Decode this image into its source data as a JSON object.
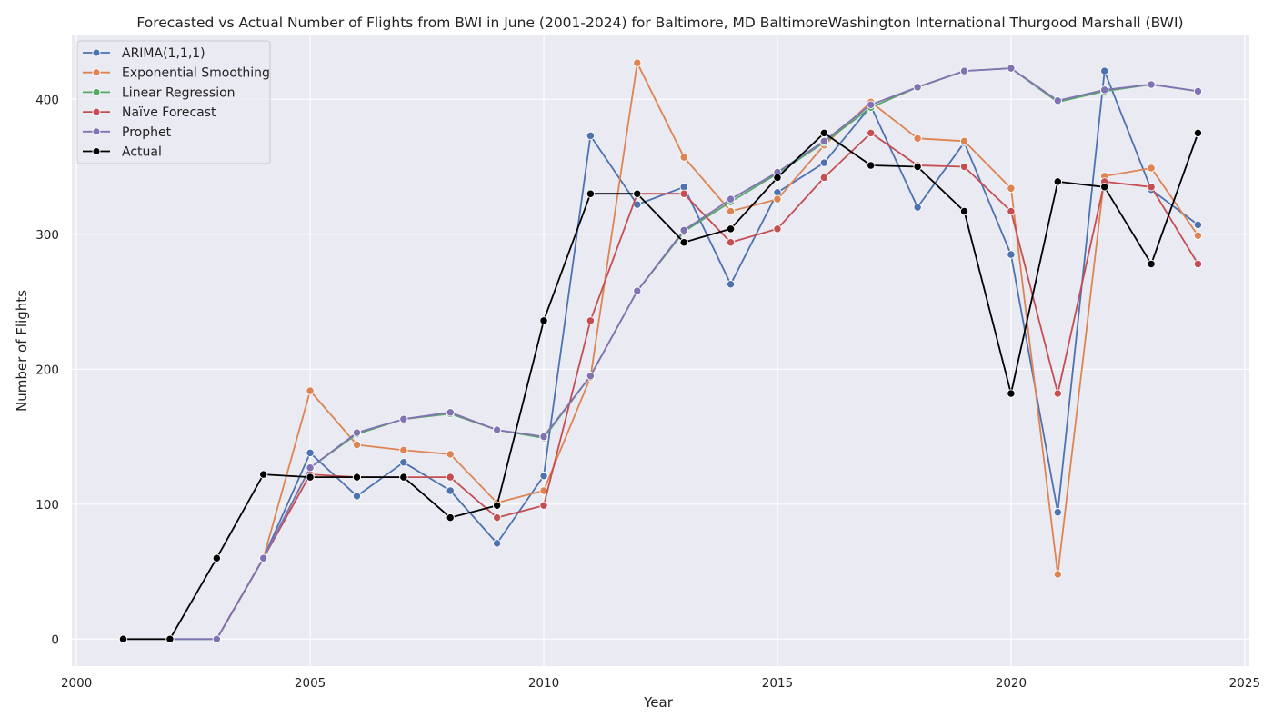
{
  "chart_data": {
    "type": "line",
    "title": "Forecasted vs Actual Number of Flights from BWI in June (2001-2024) for Baltimore, MD BaltimoreWashington International Thurgood Marshall (BWI)",
    "xlabel": "Year",
    "ylabel": "Number of Flights",
    "xlim": [
      1999.9,
      2025.1
    ],
    "ylim": [
      -20,
      448
    ],
    "x_ticks": [
      2000,
      2005,
      2010,
      2015,
      2020,
      2025
    ],
    "y_ticks": [
      0,
      100,
      200,
      300,
      400
    ],
    "grid": true,
    "legend_position": "top-left",
    "background": "#eaeaf2",
    "series": [
      {
        "name": "ARIMA(1,1,1)",
        "color": "#4c72b0",
        "x": [
          2003,
          2004,
          2005,
          2006,
          2007,
          2008,
          2009,
          2010,
          2011,
          2012,
          2013,
          2014,
          2015,
          2016,
          2017,
          2018,
          2019,
          2020,
          2021,
          2022,
          2023,
          2024
        ],
        "values": [
          0,
          60,
          138,
          106,
          131,
          110,
          71,
          121,
          373,
          322,
          335,
          263,
          331,
          353,
          395,
          320,
          368,
          285,
          94,
          421,
          333,
          307
        ]
      },
      {
        "name": "Exponential Smoothing",
        "color": "#dd8452",
        "x": [
          2003,
          2004,
          2005,
          2006,
          2007,
          2008,
          2009,
          2010,
          2011,
          2012,
          2013,
          2014,
          2015,
          2016,
          2017,
          2018,
          2019,
          2020,
          2021,
          2022,
          2023,
          2024
        ],
        "values": [
          0,
          60,
          184,
          144,
          140,
          137,
          101,
          110,
          194,
          427,
          357,
          317,
          326,
          366,
          398,
          371,
          369,
          334,
          48,
          343,
          349,
          299
        ]
      },
      {
        "name": "Linear Regression",
        "color": "#55a868",
        "x": [
          2002,
          2003,
          2004,
          2005,
          2006,
          2007,
          2008,
          2009,
          2010,
          2011,
          2012,
          2013,
          2014,
          2015,
          2016,
          2017,
          2018,
          2019,
          2020,
          2021,
          2022,
          2023,
          2024
        ],
        "values": [
          0,
          0,
          60,
          127,
          152,
          163,
          167,
          155,
          149,
          195,
          258,
          302,
          324,
          345,
          368,
          394,
          409,
          421,
          423,
          398,
          406,
          411,
          406
        ]
      },
      {
        "name": "Naïve Forecast",
        "color": "#c44e52",
        "x": [
          2003,
          2004,
          2005,
          2006,
          2007,
          2008,
          2009,
          2010,
          2011,
          2012,
          2013,
          2014,
          2015,
          2016,
          2017,
          2018,
          2019,
          2020,
          2021,
          2022,
          2023,
          2024
        ],
        "values": [
          0,
          60,
          122,
          120,
          120,
          120,
          90,
          99,
          236,
          330,
          330,
          294,
          304,
          342,
          375,
          351,
          350,
          317,
          182,
          339,
          335,
          278
        ]
      },
      {
        "name": "Prophet",
        "color": "#8172b3",
        "x": [
          2002,
          2003,
          2004,
          2005,
          2006,
          2007,
          2008,
          2009,
          2010,
          2011,
          2012,
          2013,
          2014,
          2015,
          2016,
          2017,
          2018,
          2019,
          2020,
          2021,
          2022,
          2023,
          2024
        ],
        "values": [
          0,
          0,
          60,
          127,
          153,
          163,
          168,
          155,
          150,
          195,
          258,
          303,
          326,
          346,
          369,
          396,
          409,
          421,
          423,
          399,
          407,
          411,
          406
        ]
      },
      {
        "name": "Actual",
        "color": "#000000",
        "x": [
          2001,
          2002,
          2003,
          2004,
          2005,
          2006,
          2007,
          2008,
          2009,
          2010,
          2011,
          2012,
          2013,
          2014,
          2015,
          2016,
          2017,
          2018,
          2019,
          2020,
          2021,
          2022,
          2023,
          2024
        ],
        "values": [
          0,
          0,
          60,
          122,
          120,
          120,
          120,
          90,
          99,
          236,
          330,
          330,
          294,
          304,
          342,
          375,
          351,
          350,
          317,
          182,
          339,
          335,
          278,
          375
        ]
      }
    ]
  }
}
